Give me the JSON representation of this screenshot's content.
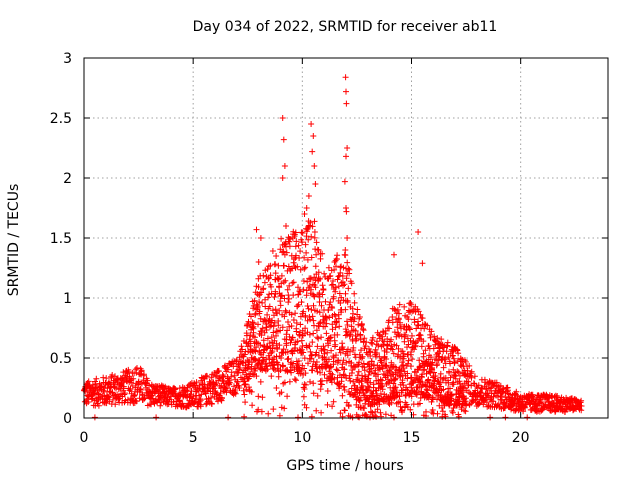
{
  "chart_data": {
    "type": "scatter",
    "title": "Day 034 of 2022, SRMTID for receiver ab11",
    "xlabel": "GPS time / hours",
    "ylabel": "SRMTID / TECUs",
    "xlim": [
      0,
      24
    ],
    "ylim": [
      0,
      3
    ],
    "xticks": [
      0,
      5,
      10,
      15,
      20
    ],
    "xtick_labels": [
      "0",
      "5",
      "10",
      "15",
      "20"
    ],
    "yticks": [
      0,
      0.5,
      1,
      1.5,
      2,
      2.5,
      3
    ],
    "ytick_labels": [
      "0",
      "0.5",
      "1",
      "1.5",
      "2",
      "2.5",
      "3"
    ],
    "grid": true,
    "marker": "+",
    "color": "#ff0000",
    "envelope": {
      "hours": [
        0,
        1,
        2,
        2.5,
        3,
        4,
        5,
        6,
        7,
        7.5,
        8,
        9,
        10,
        10.5,
        11,
        12,
        13,
        14,
        15,
        16,
        17,
        18,
        19,
        20,
        21,
        22,
        22.8
      ],
      "typical_max": [
        0.3,
        0.35,
        0.4,
        0.45,
        0.3,
        0.25,
        0.3,
        0.4,
        0.5,
        0.8,
        1.2,
        1.5,
        1.6,
        1.7,
        1.3,
        1.4,
        0.6,
        0.9,
        1.0,
        0.7,
        0.6,
        0.35,
        0.3,
        0.2,
        0.2,
        0.18,
        0.15
      ],
      "typical_min": [
        0.1,
        0.1,
        0.12,
        0.12,
        0.1,
        0.1,
        0.08,
        0.12,
        0.2,
        0.3,
        0.4,
        0.4,
        0.35,
        0.4,
        0.35,
        0.2,
        0.1,
        0.15,
        0.2,
        0.15,
        0.1,
        0.1,
        0.08,
        0.05,
        0.05,
        0.05,
        0.06
      ]
    },
    "spikes": [
      [
        9.1,
        2.5
      ],
      [
        9.15,
        2.32
      ],
      [
        9.2,
        2.1
      ],
      [
        9.1,
        2.0
      ],
      [
        9.25,
        1.6
      ],
      [
        10.4,
        2.45
      ],
      [
        10.5,
        2.35
      ],
      [
        10.45,
        2.22
      ],
      [
        10.55,
        2.1
      ],
      [
        10.6,
        1.95
      ],
      [
        10.3,
        1.85
      ],
      [
        10.2,
        1.75
      ],
      [
        10.1,
        1.7
      ],
      [
        11.98,
        2.84
      ],
      [
        12.0,
        2.72
      ],
      [
        12.02,
        2.62
      ],
      [
        12.05,
        2.25
      ],
      [
        12.0,
        2.18
      ],
      [
        11.95,
        1.97
      ],
      [
        12.0,
        1.75
      ],
      [
        12.02,
        1.72
      ],
      [
        12.05,
        1.5
      ],
      [
        11.97,
        1.4
      ],
      [
        14.2,
        1.36
      ],
      [
        15.3,
        1.55
      ],
      [
        15.5,
        1.29
      ],
      [
        7.9,
        1.57
      ],
      [
        8.1,
        1.5
      ],
      [
        8.0,
        1.3
      ],
      [
        9.7,
        1.43
      ],
      [
        8.8,
        1.35
      ]
    ],
    "zero_points_hours": [
      0.5,
      3.3,
      6.6,
      9.8,
      12.3,
      12.6,
      13.1,
      14.2,
      18.6,
      19.3,
      20.3
    ]
  }
}
